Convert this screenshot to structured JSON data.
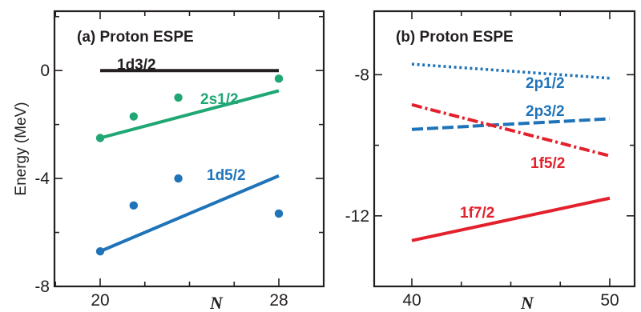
{
  "chart_data": [
    {
      "type": "line",
      "title": "(a) Proton ESPE",
      "xlabel": "N",
      "ylabel": "Energy (MeV)",
      "xlim": [
        20,
        28
      ],
      "ylim": [
        -8,
        2.2
      ],
      "xticks": [
        20,
        28
      ],
      "yticks": [
        0,
        -4,
        -8
      ],
      "grid": false,
      "series": [
        {
          "name": "1d3/2",
          "color": "#231f20",
          "style": "solid",
          "line": {
            "x": [
              20,
              28
            ],
            "y": [
              0,
              0
            ]
          }
        },
        {
          "name": "2s1/2",
          "color": "#1fa774",
          "style": "solid",
          "line": {
            "x": [
              20,
              28
            ],
            "y": [
              -2.5,
              -0.75
            ]
          },
          "points": {
            "x": [
              20,
              21.5,
              23.5,
              28
            ],
            "y": [
              -2.5,
              -1.7,
              -1.0,
              -0.3
            ]
          }
        },
        {
          "name": "1d5/2",
          "color": "#1f73b8",
          "style": "solid",
          "line": {
            "x": [
              20,
              28
            ],
            "y": [
              -6.7,
              -3.9
            ]
          },
          "points": {
            "x": [
              20,
              21.5,
              23.5,
              28
            ],
            "y": [
              -6.7,
              -5.0,
              -4.0,
              -5.3
            ]
          }
        }
      ]
    },
    {
      "type": "line",
      "title": "(b) Proton ESPE",
      "xlabel": "N",
      "ylabel": "",
      "xlim": [
        37.5,
        52.5
      ],
      "ylim": [
        -14.0,
        -6.2
      ],
      "xticks": [
        40,
        50
      ],
      "yticks": [
        -8,
        -12
      ],
      "grid": false,
      "series": [
        {
          "name": "2p1/2",
          "color": "#1f73b8",
          "style": "dotted",
          "line": {
            "x": [
              40,
              50
            ],
            "y": [
              -7.7,
              -8.1
            ]
          }
        },
        {
          "name": "2p3/2",
          "color": "#1f73b8",
          "style": "dashed",
          "line": {
            "x": [
              40,
              50
            ],
            "y": [
              -9.55,
              -9.25
            ]
          }
        },
        {
          "name": "1f5/2",
          "color": "#e3202c",
          "style": "dashdot",
          "line": {
            "x": [
              40,
              50
            ],
            "y": [
              -8.85,
              -10.3
            ]
          }
        },
        {
          "name": "1f7/2",
          "color": "#e3202c",
          "style": "solid",
          "line": {
            "x": [
              40,
              50
            ],
            "y": [
              -12.7,
              -11.5
            ]
          }
        }
      ]
    }
  ]
}
